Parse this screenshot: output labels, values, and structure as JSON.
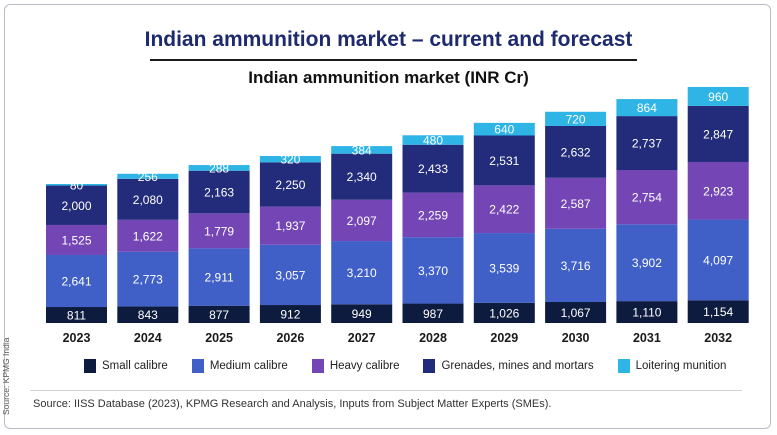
{
  "title": "Indian ammunition market – current and forecast",
  "source": "Source: IISS Database (2023), KPMG Research and Analysis, Inputs from Subject Matter Experts (SMEs).",
  "side_note": "Source: KPMG India",
  "chart_data": {
    "type": "bar",
    "stacked": true,
    "title": "Indian ammunition market (INR Cr)",
    "xlabel": "",
    "ylabel": "",
    "ylim": [
      0,
      12000
    ],
    "categories": [
      "2023",
      "2024",
      "2025",
      "2026",
      "2027",
      "2028",
      "2029",
      "2030",
      "2031",
      "2032"
    ],
    "series": [
      {
        "name": "Small calibre",
        "color": "#0d1b3e",
        "label_color": "#ffffff",
        "values": [
          811,
          843,
          877,
          912,
          949,
          987,
          1026,
          1067,
          1110,
          1154
        ]
      },
      {
        "name": "Medium calibre",
        "color": "#4060c8",
        "label_color": "#ffffff",
        "values": [
          2641,
          2773,
          2911,
          3057,
          3210,
          3370,
          3539,
          3716,
          3902,
          4097
        ]
      },
      {
        "name": "Heavy calibre",
        "color": "#7446b5",
        "label_color": "#ffffff",
        "values": [
          1525,
          1622,
          1779,
          1937,
          2097,
          2259,
          2422,
          2587,
          2754,
          2923
        ]
      },
      {
        "name": "Grenades, mines and mortars",
        "color": "#232c7a",
        "label_color": "#ffffff",
        "values": [
          2000,
          2080,
          2163,
          2250,
          2340,
          2433,
          2531,
          2632,
          2737,
          2847
        ]
      },
      {
        "name": "Loitering munition",
        "color": "#2fb4e6",
        "label_color": "#ffffff",
        "values": [
          80,
          256,
          288,
          320,
          384,
          480,
          640,
          720,
          864,
          960
        ]
      }
    ],
    "value_labels": [
      [
        "811",
        "843",
        "877",
        "912",
        "949",
        "987",
        "1,026",
        "1,067",
        "1,110",
        "1,154"
      ],
      [
        "2,641",
        "2,773",
        "2,911",
        "3,057",
        "3,210",
        "3,370",
        "3,539",
        "3,716",
        "3,902",
        "4,097"
      ],
      [
        "1,525",
        "1,622",
        "1,779",
        "1,937",
        "2,097",
        "2,259",
        "2,422",
        "2,587",
        "2,754",
        "2,923"
      ],
      [
        "2,000",
        "2,080",
        "2,163",
        "2,250",
        "2,340",
        "2,433",
        "2,531",
        "2,632",
        "2,737",
        "2,847"
      ],
      [
        "80",
        "256",
        "288",
        "320",
        "384",
        "480",
        "640",
        "720",
        "864",
        "960"
      ]
    ],
    "legend_position": "bottom"
  }
}
